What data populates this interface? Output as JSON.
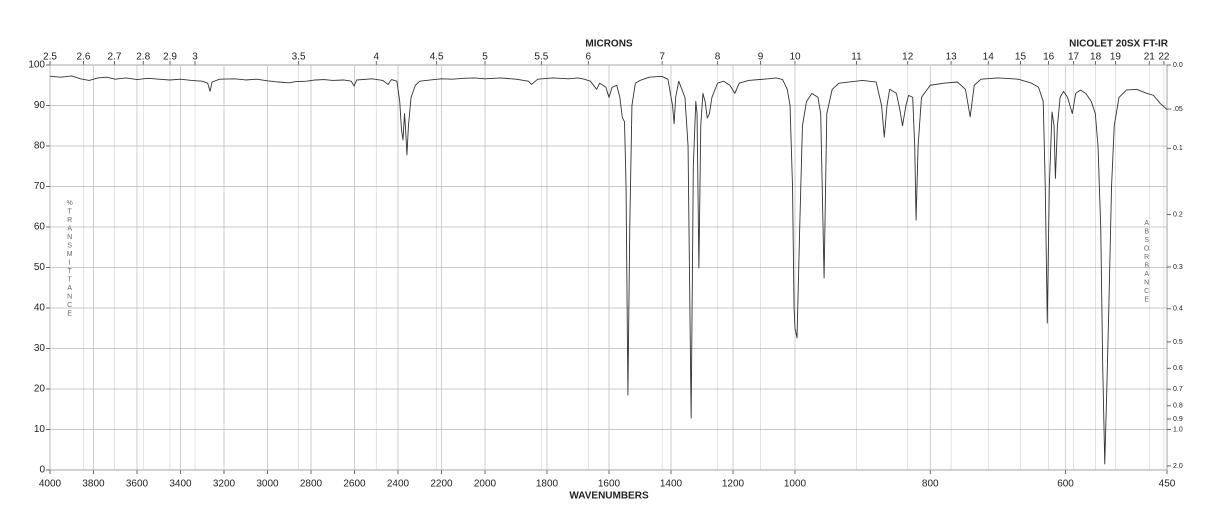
{
  "chart_data": {
    "type": "line",
    "title": "NICOLET 20SX FT-IR",
    "xlabel": "WAVENUMBERS",
    "x2label": "MICRONS",
    "ylabel": "%TRANSMITTANCE",
    "y2label": "ABSORBANCE",
    "color": "#333333",
    "grid": true,
    "xlim": [
      4000,
      450
    ],
    "x_scale_breaks": [
      2000,
      1000
    ],
    "xticks": [
      4000,
      3800,
      3600,
      3400,
      3200,
      3000,
      2800,
      2600,
      2400,
      2200,
      2000,
      1800,
      1600,
      1400,
      1200,
      1000,
      800,
      600,
      450
    ],
    "x2scale": "reciprocal",
    "x2ticks": [
      2.5,
      2.6,
      2.7,
      2.8,
      2.9,
      3,
      3.5,
      4,
      4.5,
      5,
      5.5,
      6,
      7,
      8,
      9,
      10,
      11,
      12,
      13,
      14,
      15,
      16,
      17,
      18,
      19,
      21,
      22
    ],
    "ylim": [
      0,
      100
    ],
    "yticks": [
      0,
      10,
      20,
      30,
      40,
      50,
      60,
      70,
      80,
      90,
      100
    ],
    "y2scale": "absorbance",
    "y2lim": [
      0,
      2
    ],
    "y2ticks": [
      {
        "value": 0,
        "label": "0.0"
      },
      {
        "value": 0.05,
        "label": ".05"
      },
      0.1,
      0.2,
      0.3,
      0.4,
      0.5,
      0.6,
      0.7,
      0.8,
      0.9,
      {
        "value": 1,
        "label": "1.0"
      },
      {
        "value": 2,
        "label": "2.0"
      }
    ],
    "x": [
      4000,
      3950,
      3900,
      3860,
      3820,
      3780,
      3740,
      3700,
      3650,
      3600,
      3550,
      3500,
      3450,
      3400,
      3350,
      3300,
      3275,
      3264,
      3255,
      3220,
      3150,
      3100,
      3050,
      3000,
      2950,
      2900,
      2870,
      2820,
      2780,
      2740,
      2700,
      2650,
      2615,
      2602,
      2590,
      2520,
      2470,
      2446,
      2430,
      2405,
      2392,
      2384,
      2377,
      2370,
      2365,
      2359,
      2352,
      2340,
      2320,
      2300,
      2250,
      2200,
      2150,
      2100,
      2050,
      2000,
      1950,
      1900,
      1860,
      1850,
      1830,
      1780,
      1730,
      1700,
      1680,
      1660,
      1640,
      1630,
      1610,
      1600,
      1590,
      1575,
      1565,
      1557,
      1550,
      1545,
      1539,
      1533,
      1526,
      1515,
      1500,
      1470,
      1430,
      1410,
      1395,
      1390,
      1385,
      1375,
      1365,
      1355,
      1345,
      1335,
      1328,
      1320,
      1316,
      1310,
      1304,
      1297,
      1290,
      1283,
      1276,
      1268,
      1250,
      1230,
      1210,
      1194,
      1180,
      1150,
      1100,
      1060,
      1040,
      1025,
      1016,
      1008,
      1003,
      1000,
      997,
      993,
      989,
      983,
      975,
      966,
      962,
      957,
      953,
      945,
      935,
      900,
      880,
      872,
      868,
      864,
      860,
      850,
      845,
      841,
      836,
      832,
      826,
      823,
      821,
      818,
      813,
      800,
      780,
      760,
      748,
      741,
      735,
      725,
      700,
      670,
      650,
      640,
      633,
      630,
      627,
      624,
      620,
      617,
      615,
      612,
      608,
      603,
      597,
      590,
      585,
      578,
      570,
      562,
      556,
      552,
      548,
      545,
      542,
      539,
      536,
      532,
      528,
      521,
      510,
      495,
      480,
      470,
      460,
      450
    ],
    "values": [
      97.2,
      97.0,
      97.3,
      96.6,
      96.2,
      96.8,
      97.0,
      96.5,
      96.8,
      96.4,
      96.7,
      96.5,
      96.3,
      96.5,
      96.2,
      96.0,
      95.5,
      93.5,
      95.8,
      96.5,
      96.6,
      96.3,
      96.5,
      96.1,
      95.8,
      95.6,
      95.9,
      96.0,
      96.3,
      96.4,
      96.2,
      96.3,
      96.0,
      94.8,
      96.3,
      96.6,
      96.2,
      95.2,
      96.4,
      96.0,
      91.0,
      84.0,
      81.5,
      88.0,
      84.0,
      77.8,
      85.0,
      92.0,
      95.0,
      96.0,
      96.3,
      96.6,
      96.5,
      96.7,
      96.8,
      96.6,
      96.8,
      96.5,
      96.0,
      95.2,
      96.5,
      96.8,
      96.6,
      96.8,
      96.5,
      96.0,
      94.0,
      95.5,
      94.5,
      92.0,
      94.5,
      95.0,
      92.0,
      87.0,
      86.0,
      70.0,
      18.5,
      60.0,
      90.0,
      95.5,
      96.2,
      97.0,
      97.2,
      96.5,
      90.0,
      85.5,
      92.0,
      96.0,
      94.0,
      92.0,
      80.0,
      12.8,
      75.0,
      91.0,
      88.0,
      49.9,
      85.0,
      93.0,
      91.0,
      86.9,
      88.0,
      92.0,
      95.5,
      96.0,
      95.0,
      93.0,
      95.5,
      96.2,
      96.5,
      96.8,
      96.4,
      94.0,
      90.0,
      70.0,
      40.0,
      35.0,
      32.6,
      60.0,
      85.0,
      91.0,
      93.0,
      92.0,
      88.0,
      47.4,
      88.0,
      94.0,
      95.5,
      96.2,
      95.8,
      90.0,
      82.2,
      90.0,
      94.0,
      93.0,
      89.0,
      85.0,
      90.0,
      92.5,
      92.0,
      80.0,
      61.7,
      80.0,
      92.0,
      95.0,
      95.5,
      95.8,
      94.0,
      87.2,
      95.0,
      96.5,
      96.8,
      96.5,
      95.5,
      94.5,
      91.0,
      70.0,
      36.3,
      70.0,
      88.4,
      85.0,
      72.0,
      85.0,
      92.0,
      93.5,
      92.0,
      88.0,
      93.0,
      93.8,
      93.0,
      91.0,
      88.0,
      80.0,
      60.0,
      25.0,
      1.5,
      20.0,
      40.0,
      70.0,
      85.0,
      92.0,
      93.8,
      94.0,
      93.0,
      92.5,
      90.5,
      89.0
    ]
  }
}
